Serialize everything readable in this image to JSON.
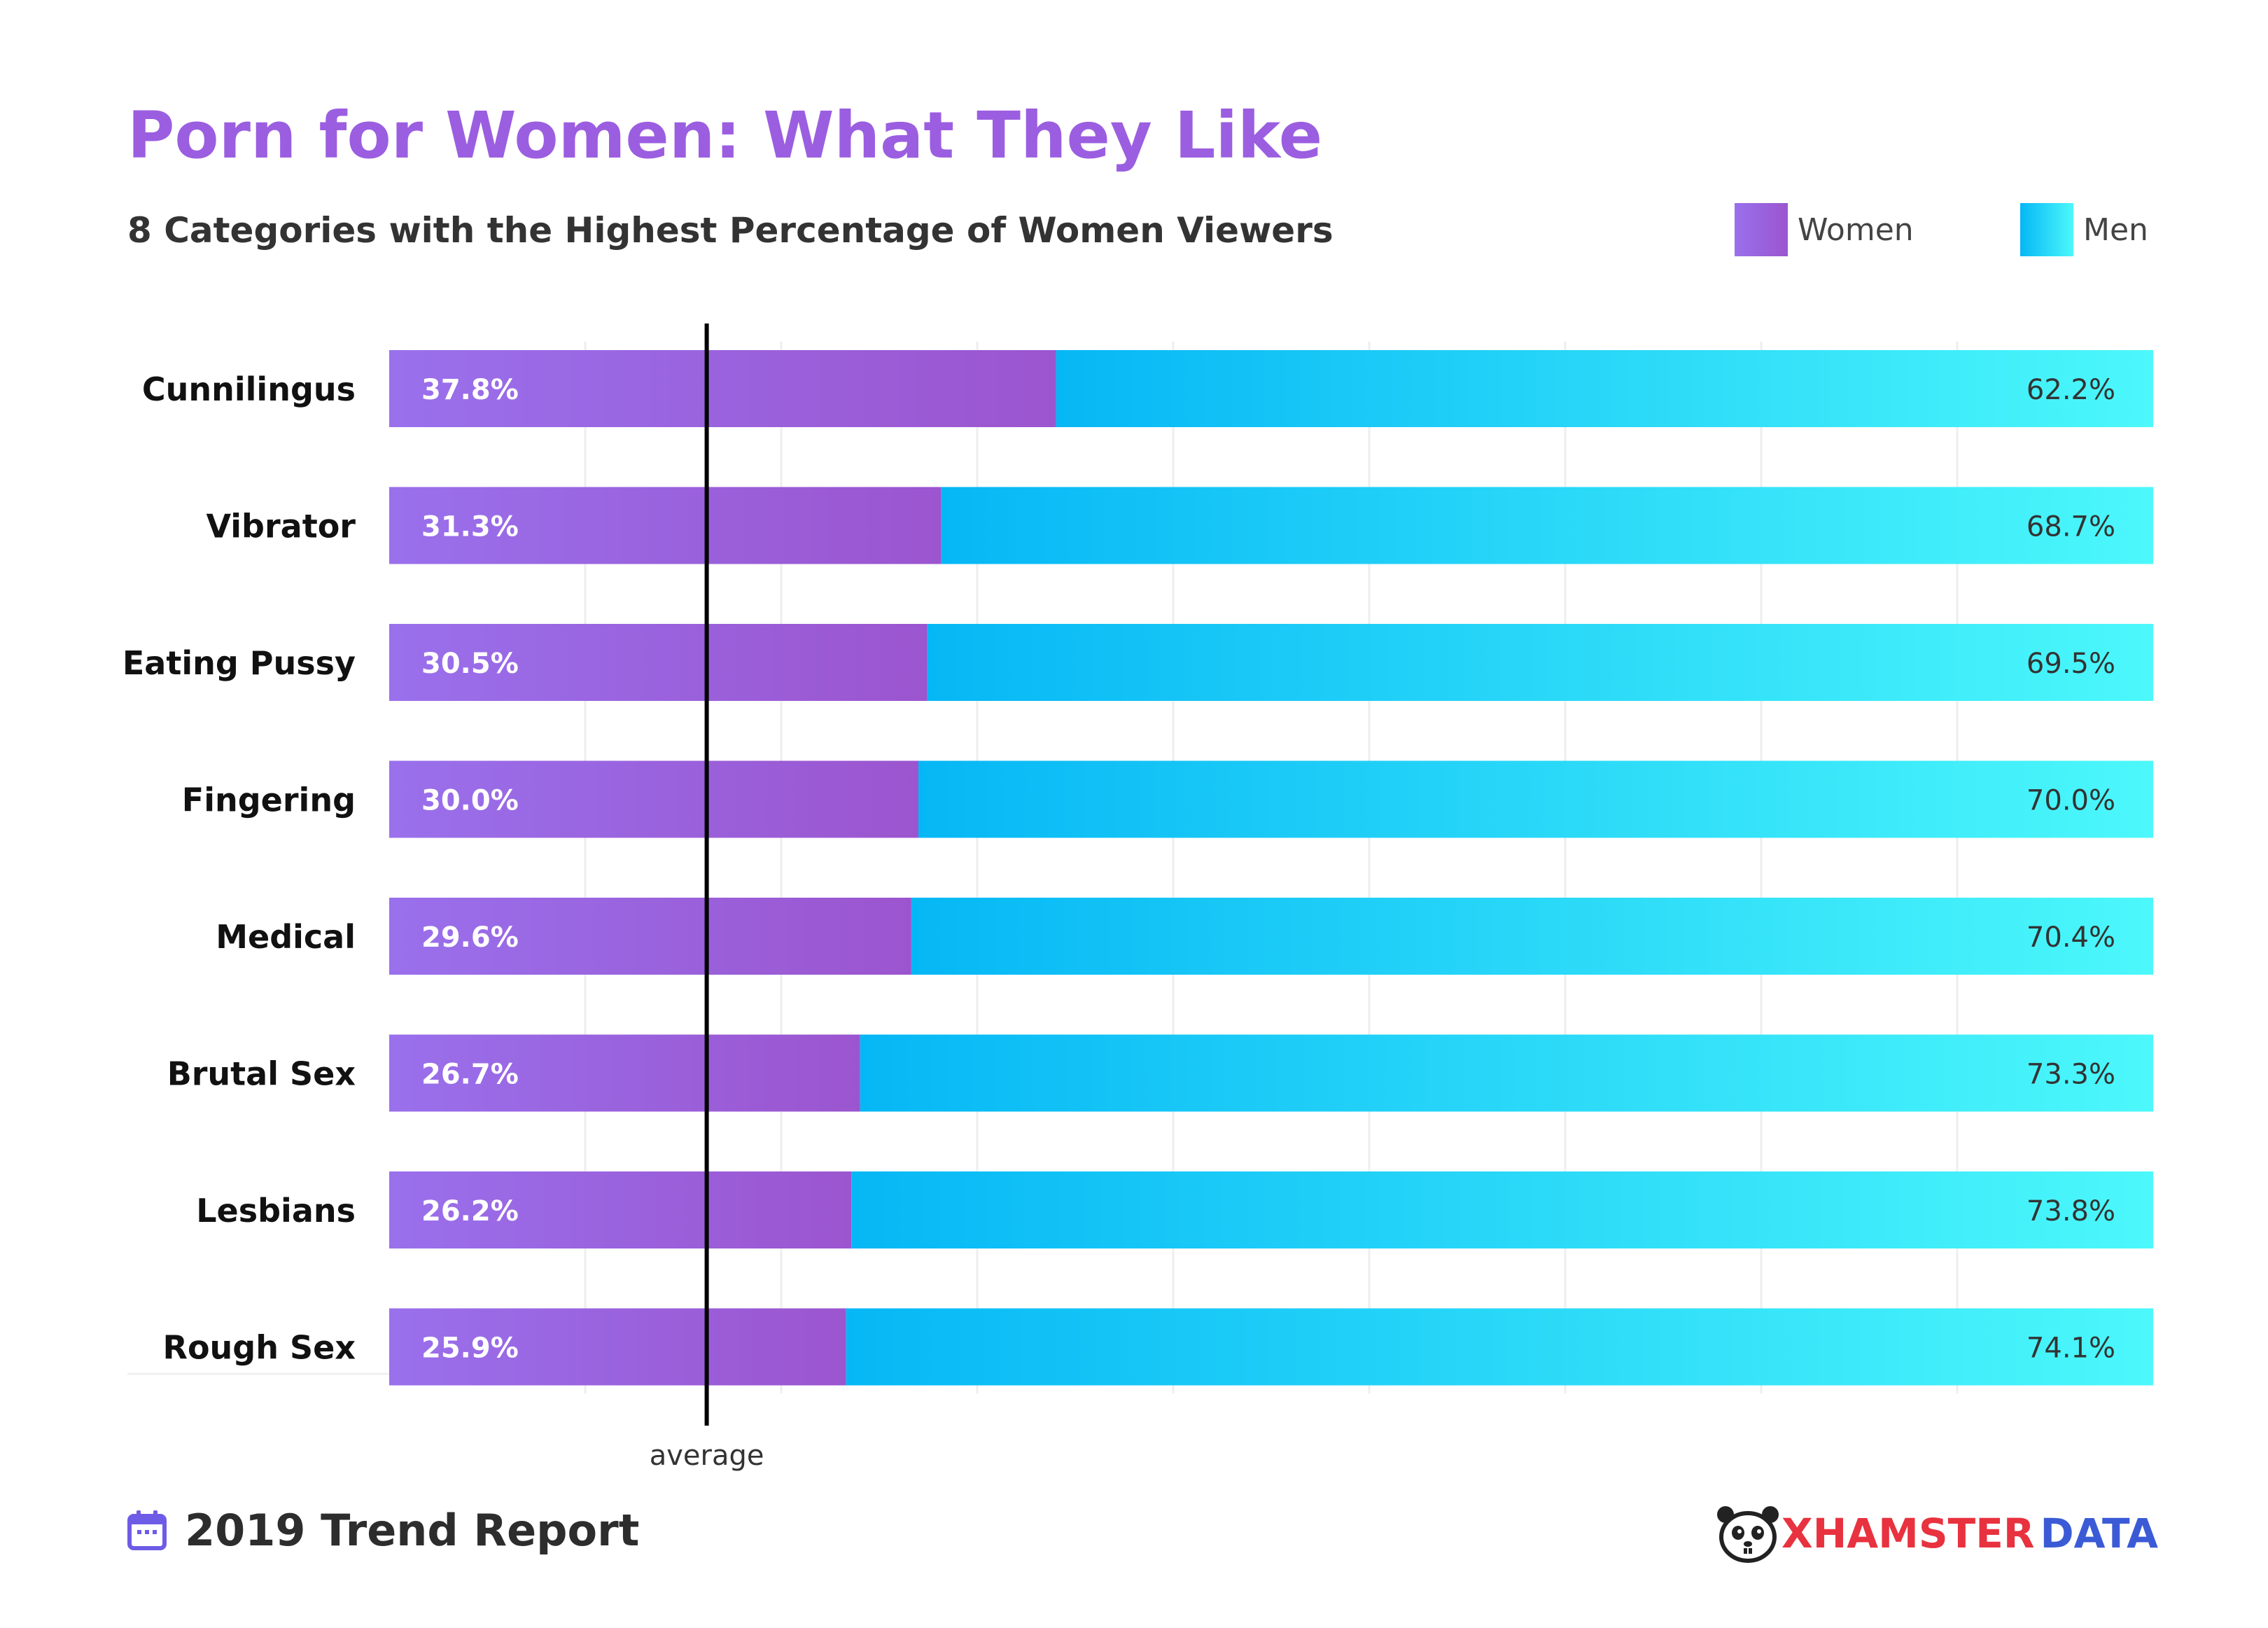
{
  "header": {
    "title": "Porn for Women: What They Like",
    "subtitle": "8 Categories with the Highest Percentage of Women Viewers"
  },
  "legend": {
    "women_label": "Women",
    "men_label": "Men"
  },
  "colors": {
    "title": "#9b5ee0",
    "women_start": "#9a70ec",
    "women_end": "#9b55cf",
    "men_start": "#06b7f5",
    "men_end": "#4cf8fb",
    "grid": "#eeeeee"
  },
  "chart_data": {
    "type": "bar",
    "orientation": "horizontal",
    "stacked": true,
    "categories": [
      "Cunnilingus",
      "Vibrator",
      "Eating Pussy",
      "Fingering",
      "Medical",
      "Brutal Sex",
      "Lesbians",
      "Rough Sex"
    ],
    "series": [
      {
        "name": "Women",
        "values": [
          37.8,
          31.3,
          30.5,
          30.0,
          29.6,
          26.7,
          26.2,
          25.9
        ],
        "labels": [
          "37.8%",
          "31.3%",
          "30.5%",
          "30.0%",
          "29.6%",
          "26.7%",
          "26.2%",
          "25.9%"
        ]
      },
      {
        "name": "Men",
        "values": [
          62.2,
          68.7,
          69.5,
          70.0,
          70.4,
          73.3,
          73.8,
          74.1
        ],
        "labels": [
          "62.2%",
          "68.7%",
          "69.5%",
          "70.0%",
          "70.4%",
          "73.3%",
          "73.8%",
          "74.1%"
        ]
      }
    ],
    "xlim": [
      0,
      100
    ],
    "grid": true,
    "legend_position": "top-right",
    "reference_line": {
      "value": 18,
      "label": "average"
    }
  },
  "footer": {
    "report_label": "2019 Trend Report",
    "calendar_icon": "calendar-icon",
    "brand_x": "XHAMSTER",
    "brand_data": "DATA",
    "brand_icon": "hamster-logo-icon"
  }
}
